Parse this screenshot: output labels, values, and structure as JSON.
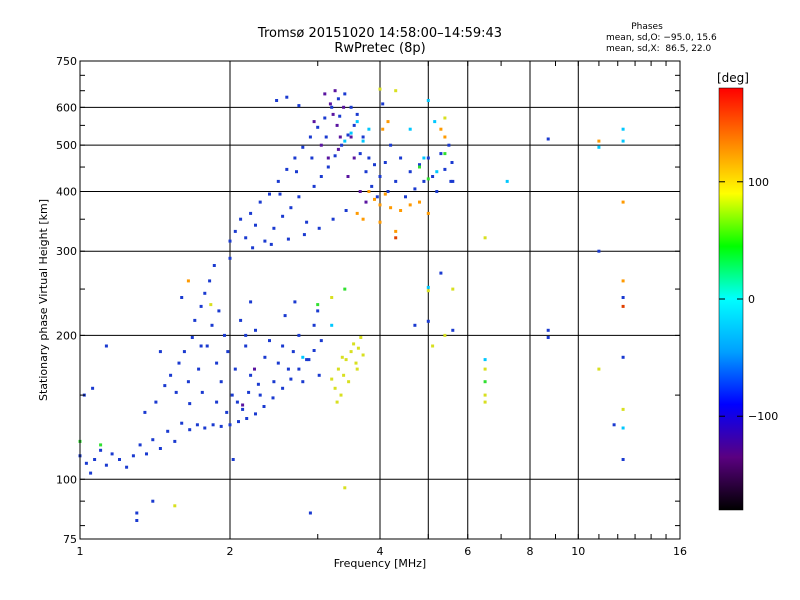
{
  "chart_data": {
    "type": "scatter",
    "title": "Tromsø 20151020 14:58:00–14:59:43",
    "subtitle": "RwPretec (8p)",
    "info": {
      "heading": "Phases",
      "line1": "mean, sd,O: −95.0, 15.6",
      "line2": "mean, sd,X:  86.5, 22.0"
    },
    "xlabel": "Frequency [MHz]",
    "ylabel": "Stationary phase Virtual Height [km]",
    "x_scale": "log",
    "y_scale": "log",
    "xlim": [
      1,
      16
    ],
    "ylim": [
      75,
      750
    ],
    "xticks": [
      {
        "v": 1,
        "label": "1"
      },
      {
        "v": 2,
        "label": "2"
      },
      {
        "v": 4,
        "label": "4"
      },
      {
        "v": 6,
        "label": "6"
      },
      {
        "v": 8,
        "label": "8"
      },
      {
        "v": 10,
        "label": "10"
      },
      {
        "v": 16,
        "label": "16"
      }
    ],
    "xgrid": [
      2,
      4,
      5,
      6,
      8,
      10
    ],
    "yticks": [
      {
        "v": 75,
        "label": "75"
      },
      {
        "v": 100,
        "label": "100"
      },
      {
        "v": 200,
        "label": "200"
      },
      {
        "v": 300,
        "label": "300"
      },
      {
        "v": 400,
        "label": "400"
      },
      {
        "v": 500,
        "label": "500"
      },
      {
        "v": 600,
        "label": "600"
      },
      {
        "v": 750,
        "label": "750"
      }
    ],
    "ygrid": [
      100,
      200,
      300,
      400,
      500,
      600
    ],
    "grid": true,
    "colorbar": {
      "label": "[deg]",
      "range": [
        -180,
        180
      ],
      "ticks": [
        {
          "v": 100,
          "label": "100"
        },
        {
          "v": 0,
          "label": "0"
        },
        {
          "v": -100,
          "label": "−100"
        }
      ],
      "colors": [
        "#000000",
        "#5a0080",
        "#0000ff",
        "#00a0ff",
        "#00ffff",
        "#00ff00",
        "#ffff00",
        "#ff8000",
        "#ff0000"
      ]
    },
    "point_color_map": {
      "O": "#1a3ad0",
      "X": "#d8e020",
      "c": "#00c8ff",
      "o": "#ff9a00",
      "g": "#30e030",
      "p": "#5a14a0",
      "r": "#e04000"
    },
    "points": [
      [
        1.0,
        112,
        "O"
      ],
      [
        1.03,
        108,
        "O"
      ],
      [
        1.05,
        103,
        "O"
      ],
      [
        1.07,
        110,
        "O"
      ],
      [
        1.1,
        115,
        "O"
      ],
      [
        1.13,
        107,
        "O"
      ],
      [
        1.16,
        113,
        "O"
      ],
      [
        1.2,
        110,
        "O"
      ],
      [
        1.24,
        106,
        "O"
      ],
      [
        1.28,
        112,
        "O"
      ],
      [
        1.32,
        118,
        "O"
      ],
      [
        1.36,
        113,
        "O"
      ],
      [
        1.4,
        121,
        "O"
      ],
      [
        1.45,
        116,
        "O"
      ],
      [
        1.5,
        126,
        "O"
      ],
      [
        1.55,
        120,
        "O"
      ],
      [
        1.6,
        131,
        "O"
      ],
      [
        1.66,
        127,
        "O"
      ],
      [
        1.72,
        130,
        "O"
      ],
      [
        1.78,
        128,
        "O"
      ],
      [
        1.85,
        130,
        "O"
      ],
      [
        1.92,
        129,
        "O"
      ],
      [
        2.0,
        130,
        "O"
      ],
      [
        2.08,
        132,
        "O"
      ],
      [
        2.16,
        134,
        "O"
      ],
      [
        2.25,
        137,
        "O"
      ],
      [
        2.34,
        142,
        "O"
      ],
      [
        2.44,
        148,
        "O"
      ],
      [
        2.55,
        155,
        "O"
      ],
      [
        2.65,
        162,
        "O"
      ],
      [
        2.75,
        170,
        "O"
      ],
      [
        2.85,
        178,
        "O"
      ],
      [
        2.95,
        186,
        "O"
      ],
      [
        3.05,
        195,
        "O"
      ],
      [
        1.02,
        150,
        "O"
      ],
      [
        1.06,
        155,
        "O"
      ],
      [
        1.35,
        138,
        "O"
      ],
      [
        1.42,
        145,
        "O"
      ],
      [
        1.48,
        157,
        "O"
      ],
      [
        1.52,
        165,
        "O"
      ],
      [
        1.56,
        152,
        "O"
      ],
      [
        1.58,
        175,
        "O"
      ],
      [
        1.62,
        185,
        "O"
      ],
      [
        1.65,
        160,
        "O"
      ],
      [
        1.68,
        198,
        "O"
      ],
      [
        1.7,
        215,
        "O"
      ],
      [
        1.73,
        170,
        "O"
      ],
      [
        1.75,
        230,
        "O"
      ],
      [
        1.78,
        245,
        "O"
      ],
      [
        1.8,
        190,
        "O"
      ],
      [
        1.82,
        260,
        "O"
      ],
      [
        1.84,
        210,
        "O"
      ],
      [
        1.86,
        280,
        "O"
      ],
      [
        1.88,
        175,
        "O"
      ],
      [
        1.9,
        225,
        "O"
      ],
      [
        1.92,
        160,
        "O"
      ],
      [
        1.95,
        200,
        "O"
      ],
      [
        1.98,
        185,
        "O"
      ],
      [
        2.02,
        150,
        "O"
      ],
      [
        2.05,
        170,
        "O"
      ],
      [
        2.1,
        215,
        "O"
      ],
      [
        2.12,
        140,
        "O"
      ],
      [
        2.15,
        190,
        "O"
      ],
      [
        2.2,
        165,
        "O"
      ],
      [
        2.25,
        205,
        "O"
      ],
      [
        2.3,
        150,
        "O"
      ],
      [
        2.35,
        180,
        "O"
      ],
      [
        2.4,
        195,
        "O"
      ],
      [
        2.45,
        160,
        "O"
      ],
      [
        2.5,
        175,
        "O"
      ],
      [
        2.55,
        190,
        "O"
      ],
      [
        2.62,
        170,
        "O"
      ],
      [
        2.68,
        185,
        "O"
      ],
      [
        2.75,
        200,
        "O"
      ],
      [
        2.8,
        160,
        "O"
      ],
      [
        2.88,
        178,
        "O"
      ],
      [
        2.95,
        210,
        "O"
      ],
      [
        3.0,
        225,
        "O"
      ],
      [
        3.02,
        165,
        "O"
      ],
      [
        1.97,
        138,
        "O"
      ],
      [
        2.07,
        145,
        "O"
      ],
      [
        2.18,
        152,
        "O"
      ],
      [
        2.28,
        158,
        "O"
      ],
      [
        1.88,
        145,
        "O"
      ],
      [
        1.76,
        152,
        "O"
      ],
      [
        1.66,
        144,
        "O"
      ],
      [
        1.13,
        190,
        "O"
      ],
      [
        1.45,
        185,
        "O"
      ],
      [
        1.6,
        240,
        "O"
      ],
      [
        1.4,
        90,
        "O"
      ],
      [
        2.03,
        110,
        "O"
      ],
      [
        2.58,
        220,
        "O"
      ],
      [
        2.7,
        235,
        "O"
      ],
      [
        3.2,
        162,
        "X"
      ],
      [
        3.25,
        155,
        "X"
      ],
      [
        3.3,
        170,
        "X"
      ],
      [
        3.34,
        150,
        "X"
      ],
      [
        3.38,
        165,
        "X"
      ],
      [
        3.42,
        178,
        "X"
      ],
      [
        3.46,
        160,
        "X"
      ],
      [
        3.5,
        185,
        "X"
      ],
      [
        3.54,
        192,
        "X"
      ],
      [
        3.58,
        175,
        "X"
      ],
      [
        3.62,
        188,
        "X"
      ],
      [
        3.66,
        198,
        "X"
      ],
      [
        3.7,
        182,
        "X"
      ],
      [
        3.28,
        145,
        "X"
      ],
      [
        3.36,
        180,
        "X"
      ],
      [
        3.6,
        170,
        "X"
      ],
      [
        3.2,
        240,
        "X"
      ],
      [
        3.4,
        96,
        "X"
      ],
      [
        1.55,
        88,
        "X"
      ],
      [
        1.83,
        232,
        "X"
      ],
      [
        2.0,
        315,
        "O"
      ],
      [
        2.05,
        330,
        "O"
      ],
      [
        2.1,
        350,
        "O"
      ],
      [
        2.15,
        320,
        "O"
      ],
      [
        2.2,
        360,
        "O"
      ],
      [
        2.25,
        340,
        "O"
      ],
      [
        2.3,
        380,
        "O"
      ],
      [
        2.35,
        315,
        "O"
      ],
      [
        2.4,
        395,
        "O"
      ],
      [
        2.45,
        335,
        "O"
      ],
      [
        2.5,
        420,
        "O"
      ],
      [
        2.55,
        355,
        "O"
      ],
      [
        2.6,
        445,
        "O"
      ],
      [
        2.65,
        370,
        "O"
      ],
      [
        2.7,
        470,
        "O"
      ],
      [
        2.75,
        390,
        "O"
      ],
      [
        2.8,
        495,
        "O"
      ],
      [
        2.85,
        345,
        "O"
      ],
      [
        2.9,
        520,
        "O"
      ],
      [
        2.95,
        410,
        "O"
      ],
      [
        3.0,
        545,
        "O"
      ],
      [
        3.05,
        430,
        "O"
      ],
      [
        3.1,
        570,
        "O"
      ],
      [
        3.15,
        450,
        "O"
      ],
      [
        3.2,
        600,
        "O"
      ],
      [
        3.25,
        475,
        "O"
      ],
      [
        3.3,
        625,
        "O"
      ],
      [
        3.35,
        500,
        "O"
      ],
      [
        3.4,
        640,
        "O"
      ],
      [
        3.45,
        525,
        "O"
      ],
      [
        3.5,
        600,
        "O"
      ],
      [
        3.55,
        550,
        "O"
      ],
      [
        3.6,
        580,
        "O"
      ],
      [
        3.65,
        480,
        "O"
      ],
      [
        3.7,
        520,
        "O"
      ],
      [
        3.75,
        440,
        "O"
      ],
      [
        3.8,
        470,
        "O"
      ],
      [
        3.85,
        410,
        "O"
      ],
      [
        3.9,
        455,
        "O"
      ],
      [
        3.95,
        390,
        "O"
      ],
      [
        4.0,
        430,
        "O"
      ],
      [
        4.05,
        610,
        "O"
      ],
      [
        4.1,
        460,
        "O"
      ],
      [
        4.15,
        400,
        "O"
      ],
      [
        4.2,
        500,
        "O"
      ],
      [
        4.3,
        420,
        "O"
      ],
      [
        4.4,
        470,
        "O"
      ],
      [
        4.5,
        390,
        "O"
      ],
      [
        4.6,
        440,
        "O"
      ],
      [
        4.7,
        405,
        "O"
      ],
      [
        4.8,
        455,
        "O"
      ],
      [
        4.9,
        420,
        "O"
      ],
      [
        5.0,
        470,
        "O"
      ],
      [
        5.1,
        430,
        "O"
      ],
      [
        5.2,
        400,
        "O"
      ],
      [
        5.3,
        480,
        "O"
      ],
      [
        5.4,
        445,
        "O"
      ],
      [
        5.5,
        500,
        "O"
      ],
      [
        5.55,
        420,
        "O"
      ],
      [
        5.58,
        460,
        "O"
      ],
      [
        2.52,
        395,
        "O"
      ],
      [
        2.72,
        440,
        "O"
      ],
      [
        2.92,
        470,
        "O"
      ],
      [
        3.12,
        520,
        "O"
      ],
      [
        3.32,
        575,
        "O"
      ],
      [
        2.22,
        305,
        "O"
      ],
      [
        2.42,
        310,
        "O"
      ],
      [
        2.62,
        318,
        "O"
      ],
      [
        2.82,
        325,
        "O"
      ],
      [
        3.02,
        335,
        "O"
      ],
      [
        3.22,
        350,
        "O"
      ],
      [
        3.42,
        365,
        "O"
      ],
      [
        2.48,
        620,
        "O"
      ],
      [
        2.6,
        630,
        "O"
      ],
      [
        2.75,
        605,
        "O"
      ],
      [
        3.1,
        640,
        "p"
      ],
      [
        3.18,
        610,
        "p"
      ],
      [
        3.22,
        580,
        "p"
      ],
      [
        3.28,
        550,
        "p"
      ],
      [
        3.33,
        520,
        "p"
      ],
      [
        3.05,
        500,
        "p"
      ],
      [
        3.15,
        470,
        "p"
      ],
      [
        3.38,
        600,
        "p"
      ],
      [
        3.45,
        430,
        "p"
      ],
      [
        3.55,
        470,
        "p"
      ],
      [
        3.65,
        400,
        "p"
      ],
      [
        2.95,
        560,
        "p"
      ],
      [
        3.25,
        650,
        "p"
      ],
      [
        3.3,
        490,
        "p"
      ],
      [
        3.5,
        520,
        "p"
      ],
      [
        3.75,
        380,
        "p"
      ],
      [
        2.12,
        143,
        "p"
      ],
      [
        2.24,
        170,
        "p"
      ],
      [
        3.8,
        400,
        "o"
      ],
      [
        3.9,
        385,
        "o"
      ],
      [
        4.0,
        375,
        "o"
      ],
      [
        4.1,
        395,
        "o"
      ],
      [
        4.2,
        370,
        "o"
      ],
      [
        4.4,
        365,
        "o"
      ],
      [
        4.6,
        375,
        "o"
      ],
      [
        4.8,
        380,
        "o"
      ],
      [
        5.0,
        360,
        "o"
      ],
      [
        4.05,
        540,
        "o"
      ],
      [
        4.15,
        560,
        "o"
      ],
      [
        5.3,
        540,
        "o"
      ],
      [
        5.4,
        520,
        "o"
      ],
      [
        3.6,
        360,
        "o"
      ],
      [
        3.7,
        350,
        "o"
      ],
      [
        4.0,
        345,
        "o"
      ],
      [
        4.3,
        330,
        "o"
      ],
      [
        11.0,
        510,
        "o"
      ],
      [
        12.3,
        380,
        "o"
      ],
      [
        12.3,
        260,
        "o"
      ],
      [
        12.3,
        230,
        "r"
      ],
      [
        4.3,
        320,
        "r"
      ],
      [
        1.65,
        260,
        "o"
      ],
      [
        4.3,
        650,
        "X"
      ],
      [
        4.0,
        655,
        "X"
      ],
      [
        5.4,
        570,
        "X"
      ],
      [
        12.3,
        510,
        "c"
      ],
      [
        3.5,
        530,
        "c"
      ],
      [
        3.6,
        560,
        "c"
      ],
      [
        3.7,
        510,
        "c"
      ],
      [
        3.8,
        540,
        "c"
      ],
      [
        3.4,
        510,
        "c"
      ],
      [
        4.6,
        540,
        "c"
      ],
      [
        4.9,
        470,
        "c"
      ],
      [
        5.2,
        440,
        "c"
      ],
      [
        5.0,
        620,
        "c"
      ],
      [
        5.15,
        560,
        "c"
      ],
      [
        7.2,
        420,
        "c"
      ],
      [
        6.5,
        178,
        "c"
      ],
      [
        11.0,
        495,
        "c"
      ],
      [
        12.3,
        540,
        "c"
      ],
      [
        12.3,
        128,
        "c"
      ],
      [
        5.0,
        252,
        "c"
      ],
      [
        3.2,
        210,
        "c"
      ],
      [
        2.8,
        180,
        "c"
      ],
      [
        3.0,
        232,
        "g"
      ],
      [
        1.0,
        120,
        "g"
      ],
      [
        1.1,
        118,
        "g"
      ],
      [
        6.5,
        160,
        "g"
      ],
      [
        5.0,
        425,
        "g"
      ],
      [
        4.8,
        450,
        "g"
      ],
      [
        3.4,
        250,
        "g"
      ],
      [
        5.4,
        480,
        "g"
      ],
      [
        6.5,
        150,
        "X"
      ],
      [
        6.5,
        170,
        "X"
      ],
      [
        6.5,
        145,
        "X"
      ],
      [
        6.5,
        320,
        "X"
      ],
      [
        11.0,
        170,
        "X"
      ],
      [
        12.3,
        140,
        "X"
      ],
      [
        5.0,
        248,
        "X"
      ],
      [
        5.1,
        190,
        "X"
      ],
      [
        5.4,
        200,
        "X"
      ],
      [
        5.6,
        250,
        "X"
      ],
      [
        8.7,
        515,
        "O"
      ],
      [
        8.7,
        205,
        "O"
      ],
      [
        8.7,
        198,
        "O"
      ],
      [
        11.0,
        300,
        "O"
      ],
      [
        12.3,
        110,
        "O"
      ],
      [
        12.3,
        180,
        "O"
      ],
      [
        11.8,
        130,
        "O"
      ],
      [
        5.0,
        214,
        "O"
      ],
      [
        5.6,
        205,
        "O"
      ],
      [
        2.9,
        85,
        "O"
      ],
      [
        1.3,
        85,
        "O"
      ],
      [
        1.3,
        82,
        "O"
      ],
      [
        5.3,
        270,
        "O"
      ],
      [
        4.7,
        210,
        "O"
      ],
      [
        1.75,
        190,
        "O"
      ],
      [
        12.3,
        240,
        "O"
      ],
      [
        2.0,
        290,
        "O"
      ],
      [
        5.6,
        420,
        "O"
      ],
      [
        2.15,
        200,
        "O"
      ],
      [
        2.2,
        235,
        "O"
      ]
    ]
  }
}
